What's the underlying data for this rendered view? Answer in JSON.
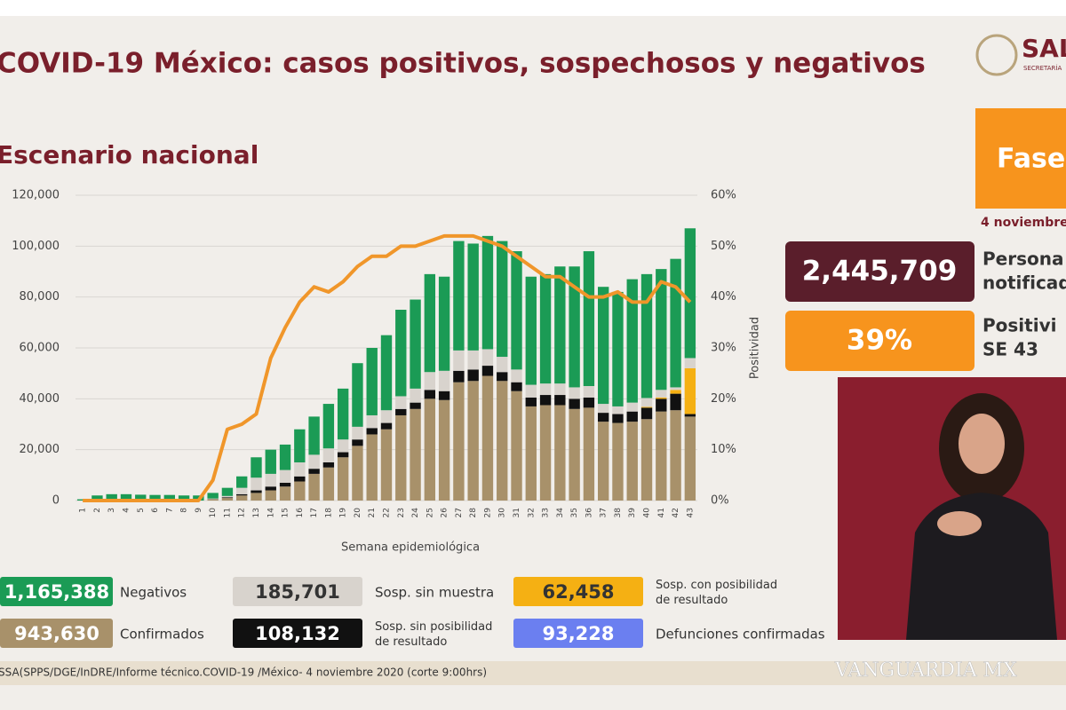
{
  "header": {
    "title": "COVID-19 México: casos positivos, sospechosos y negativos",
    "subtitle": "Escenario nacional",
    "logo": "SAL",
    "logo_sub": "SECRETARÍA"
  },
  "chart_data": {
    "type": "stacked-bar-line",
    "x_label": "Semana epidemiológica",
    "y2_label": "Positividad",
    "categories": [
      "1",
      "2",
      "3",
      "4",
      "5",
      "6",
      "7",
      "8",
      "9",
      "10",
      "11",
      "12",
      "13",
      "14",
      "15",
      "16",
      "17",
      "18",
      "19",
      "20",
      "21",
      "22",
      "23",
      "24",
      "25",
      "26",
      "27",
      "28",
      "29",
      "30",
      "31",
      "32",
      "33",
      "34",
      "35",
      "36",
      "37",
      "38",
      "39",
      "40",
      "41",
      "42",
      "43"
    ],
    "series": [
      {
        "name": "Confirmados",
        "total": "943,630",
        "color": "#a8916a",
        "values": [
          0,
          0,
          0,
          0,
          0,
          0,
          0,
          0,
          10,
          500,
          1000,
          2000,
          3000,
          4000,
          5500,
          7500,
          10500,
          13000,
          17000,
          21500,
          26000,
          28000,
          33500,
          36000,
          40000,
          39500,
          46500,
          47000,
          49000,
          47000,
          43000,
          37000,
          37500,
          37500,
          36000,
          36500,
          31000,
          30500,
          31000,
          32000,
          35000,
          35500,
          33000
        ]
      },
      {
        "name": "Sosp. sin posibilidad de resultado",
        "total": "108,132",
        "color": "#111111",
        "values": [
          0,
          0,
          0,
          0,
          0,
          0,
          0,
          0,
          0,
          100,
          300,
          500,
          1000,
          1500,
          1500,
          2000,
          2000,
          2000,
          2000,
          2500,
          2500,
          2500,
          2500,
          2500,
          3500,
          3500,
          4500,
          4500,
          4000,
          3500,
          3500,
          3500,
          4000,
          4000,
          4000,
          4000,
          3500,
          3500,
          4000,
          4500,
          5000,
          6500,
          1000
        ]
      },
      {
        "name": "Sosp. con posibilidad de resultado",
        "total": "62,458",
        "color": "#f5b013",
        "values": [
          0,
          0,
          0,
          0,
          0,
          0,
          0,
          0,
          0,
          0,
          0,
          0,
          0,
          0,
          0,
          0,
          0,
          0,
          0,
          0,
          0,
          0,
          0,
          0,
          0,
          0,
          0,
          0,
          0,
          0,
          0,
          0,
          0,
          0,
          0,
          0,
          0,
          0,
          0,
          300,
          500,
          1500,
          18000
        ]
      },
      {
        "name": "Sosp. sin muestra",
        "total": "185,701",
        "color": "#d8d3cd",
        "values": [
          0,
          0,
          0,
          0,
          0,
          0,
          0,
          0,
          0,
          200,
          500,
          2500,
          5000,
          5000,
          5000,
          5500,
          5500,
          5500,
          5000,
          5000,
          5000,
          5000,
          5000,
          5500,
          7000,
          8000,
          8000,
          7500,
          6500,
          6000,
          5000,
          5000,
          4500,
          4500,
          4500,
          4500,
          3500,
          3000,
          3500,
          3500,
          3000,
          1000,
          4000
        ]
      },
      {
        "name": "Negativos",
        "total": "1,165,388",
        "color": "#1b9b55",
        "values": [
          500,
          2000,
          2500,
          2500,
          2300,
          2200,
          2200,
          2000,
          1990,
          2200,
          3200,
          4500,
          8000,
          9500,
          10000,
          13000,
          15000,
          17500,
          20000,
          25000,
          26500,
          29500,
          34000,
          35000,
          38500,
          37000,
          43000,
          42000,
          44500,
          45500,
          46500,
          42500,
          43000,
          46000,
          47500,
          53000,
          46000,
          45000,
          48500,
          48700,
          47500,
          50500,
          51000
        ]
      },
      {
        "name": "Positividad",
        "axis": "y2",
        "type": "line",
        "color": "#f0962a",
        "values": [
          0,
          0,
          0,
          0,
          0,
          0,
          0,
          0,
          0,
          4,
          14,
          15,
          17,
          28,
          34,
          39,
          42,
          41,
          43,
          46,
          48,
          48,
          50,
          50,
          51,
          52,
          52,
          52,
          51,
          50,
          48,
          46,
          44,
          44,
          42,
          40,
          40,
          41,
          39,
          39,
          43,
          42,
          39
        ]
      }
    ],
    "extra_legend": {
      "name": "Defunciones confirmadas",
      "total": "93,228",
      "color": "#6b7ff0"
    },
    "ylim": [
      0,
      120000
    ],
    "yticks": [
      0,
      {
        "value": 20000,
        "label": "20,000"
      },
      {
        "value": 40000,
        "label": "40,000"
      },
      {
        "value": 60000,
        "label": "60,000"
      },
      {
        "value": 80000,
        "label": "80,000"
      },
      {
        "value": 100000,
        "label": "100,000"
      },
      {
        "value": 120000,
        "label": "120,000"
      }
    ],
    "y2lim": [
      0,
      60
    ],
    "y2ticks": [
      {
        "value": 0,
        "label": "0%"
      },
      {
        "value": 10,
        "label": "10%"
      },
      {
        "value": 20,
        "label": "20%"
      },
      {
        "value": 30,
        "label": "30%"
      },
      {
        "value": 40,
        "label": "40%"
      },
      {
        "value": 50,
        "label": "50%"
      },
      {
        "value": 60,
        "label": "60%"
      }
    ],
    "grid": true
  },
  "side": {
    "phase": "Fase",
    "date": "4 noviembre",
    "people_value": "2,445,709",
    "people_label_1": "Persona",
    "people_label_2": "notificad",
    "positivity_value": "39%",
    "positivity_label_1": "Positivi",
    "positivity_label_2": "SE 43"
  },
  "footer": {
    "source": "SSA(SPPS/DGE/InDRE/Informe técnico.COVID-19 /México- 4 noviembre 2020 (corte 9:00hrs)",
    "watermark": "VANGUARDIA MX"
  }
}
